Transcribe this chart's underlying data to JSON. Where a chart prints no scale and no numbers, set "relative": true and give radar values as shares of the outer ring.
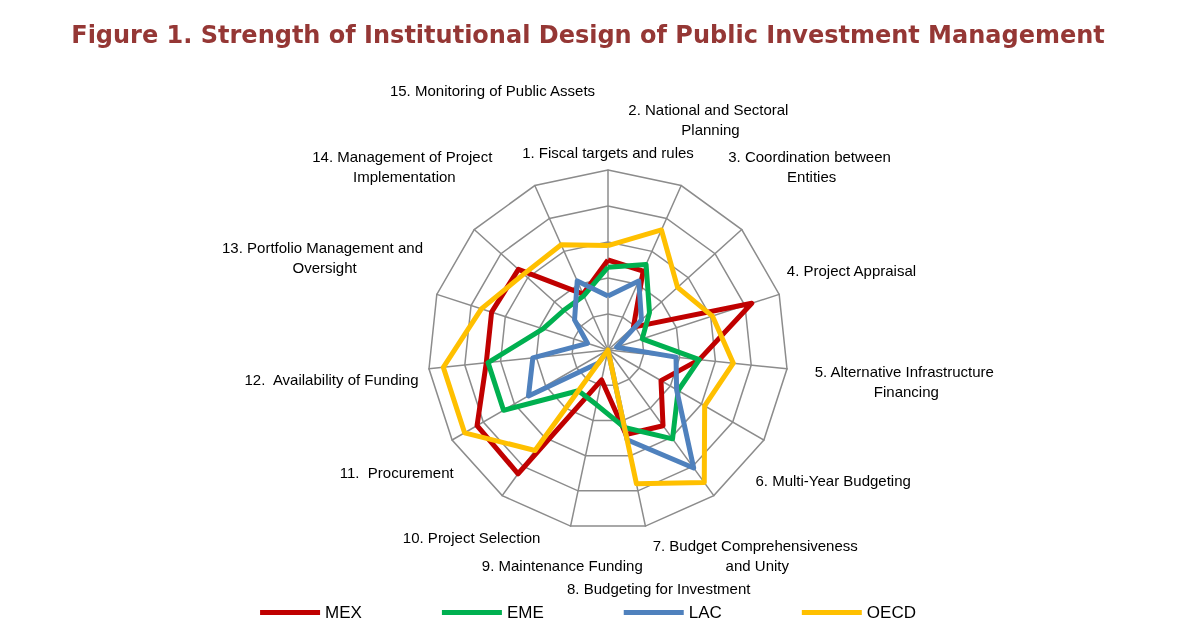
{
  "chart_data": {
    "type": "radar",
    "title": "Figure 1. Strength of Institutional Design of Public Investment Management",
    "relative": true,
    "categories": [
      "1. Fiscal targets and rules",
      "2. National and Sectoral Planning",
      "3. Coordination between Entities",
      "4. Project Appraisal",
      "5. Alternative Infrastructure Financing",
      "6. Multi-Year Budgeting",
      "7. Budget Comprehensiveness and Unity",
      "8. Budgeting for Investment",
      "9. Maintenance Funding",
      "10. Project Selection",
      "11.  Procurement",
      "12.  Availability of Funding",
      "13. Portfolio Management and Oversight",
      "14. Management of Project Implementation",
      "15. Monitoring of Public Assets"
    ],
    "series": [
      {
        "name": "MEX",
        "color": "#c00000",
        "values": [
          0.5,
          0.48,
          0.19,
          0.84,
          0.51,
          0.34,
          0.52,
          0.48,
          0.17,
          0.85,
          0.84,
          0.68,
          0.68,
          0.67,
          0.34
        ]
      },
      {
        "name": "EME",
        "color": "#00b050",
        "values": [
          0.46,
          0.52,
          0.31,
          0.2,
          0.51,
          0.45,
          0.61,
          0.44,
          0.31,
          0.28,
          0.67,
          0.67,
          0.38,
          0.33,
          0.33
        ]
      },
      {
        "name": "LAC",
        "color": "#4f81bd",
        "values": [
          0.3,
          0.42,
          0.25,
          0.05,
          0.38,
          0.44,
          0.81,
          0.51,
          null,
          0.09,
          0.51,
          0.42,
          0.12,
          0.25,
          0.42
        ]
      },
      {
        "name": "OECD",
        "color": "#ffc000",
        "values": [
          0.58,
          0.73,
          0.52,
          0.61,
          0.7,
          0.62,
          0.91,
          0.76,
          null,
          0.69,
          0.92,
          0.92,
          0.74,
          0.63,
          0.64
        ]
      }
    ],
    "legend": "bottom",
    "marker": "none",
    "line_style": "solid",
    "grid": true
  }
}
